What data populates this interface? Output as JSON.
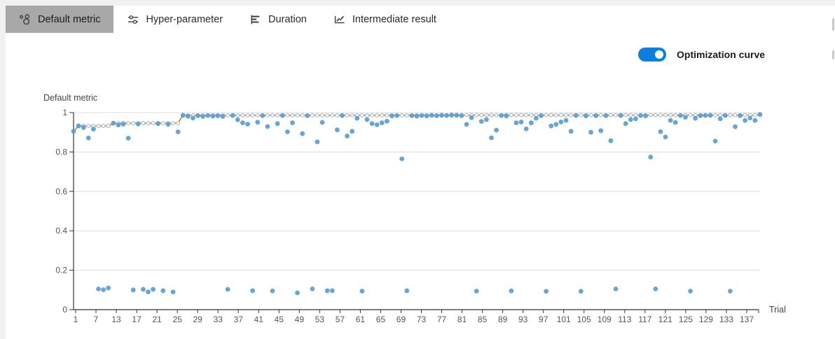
{
  "tabs": [
    {
      "label": "Default metric",
      "active": true,
      "icon": "scatter-bubbles-icon"
    },
    {
      "label": "Hyper-parameter",
      "active": false,
      "icon": "sliders-icon"
    },
    {
      "label": "Duration",
      "active": false,
      "icon": "horizontal-bars-icon"
    },
    {
      "label": "Intermediate result",
      "active": false,
      "icon": "line-chart-icon"
    }
  ],
  "toggle": {
    "label": "Optimization curve",
    "state": "on"
  },
  "colors": {
    "accent_blue": "#0b7fdb",
    "active_tab_bg": "#a8a8a8",
    "scatter_dot": "#569bd0",
    "curve_line": "#f2740b",
    "curve_marker_stroke": "#9fb9cb",
    "gridline": "#dddddd",
    "axis": "#333333",
    "tick_label": "#555555"
  },
  "chart_data": {
    "type": "scatter",
    "title": "Default metric",
    "xlabel": "Trial",
    "ylabel": "Default metric",
    "ylim": [
      0,
      1
    ],
    "grid": true,
    "legend": "none",
    "y_tick_labels": [
      "0",
      "0.2",
      "0.4",
      "0.6",
      "0.8",
      "1"
    ],
    "x_tick_labels": [
      "1",
      "7",
      "13",
      "17",
      "21",
      "25",
      "29",
      "33",
      "37",
      "41",
      "45",
      "49",
      "53",
      "57",
      "61",
      "65",
      "69",
      "73",
      "77",
      "81",
      "85",
      "89",
      "93",
      "97",
      "101",
      "105",
      "109",
      "113",
      "117",
      "121",
      "125",
      "129",
      "133",
      "137"
    ],
    "series": [
      {
        "name": "Default metric",
        "type": "scatter",
        "color": "#569bd0",
        "values": [
          0.905,
          0.932,
          0.924,
          0.871,
          0.916,
          0.105,
          0.101,
          0.11,
          0.946,
          0.937,
          0.941,
          0.87,
          0.1,
          0.942,
          0.103,
          0.09,
          0.103,
          0.944,
          0.096,
          0.94,
          0.09,
          0.902,
          0.986,
          0.981,
          0.972,
          0.984,
          0.98,
          0.985,
          0.982,
          0.984,
          0.98,
          0.103,
          0.985,
          0.963,
          0.948,
          0.941,
          0.096,
          0.951,
          0.984,
          0.929,
          0.095,
          0.944,
          0.985,
          0.902,
          0.948,
          0.085,
          0.893,
          0.984,
          0.105,
          0.851,
          0.95,
          0.096,
          0.096,
          0.912,
          0.985,
          0.881,
          0.905,
          0.971,
          0.094,
          0.964,
          0.944,
          0.938,
          0.948,
          0.956,
          0.983,
          0.985,
          0.765,
          0.096,
          0.984,
          0.982,
          0.985,
          0.983,
          0.986,
          0.984,
          0.986,
          0.985,
          0.987,
          0.986,
          0.984,
          0.94,
          0.974,
          0.094,
          0.955,
          0.964,
          0.872,
          0.911,
          0.985,
          0.983,
          0.095,
          0.948,
          0.952,
          0.917,
          0.948,
          0.971,
          0.984,
          0.093,
          0.932,
          0.94,
          0.952,
          0.96,
          0.905,
          0.985,
          0.093,
          0.983,
          0.9,
          0.984,
          0.908,
          0.984,
          0.857,
          0.105,
          0.985,
          0.944,
          0.964,
          0.968,
          0.985,
          0.983,
          0.774,
          0.105,
          0.903,
          0.876,
          0.96,
          0.95,
          0.985,
          0.976,
          0.094,
          0.971,
          0.984,
          0.985,
          0.986,
          0.855,
          0.968,
          0.985,
          0.094,
          0.928,
          0.984,
          0.96,
          0.972,
          0.96,
          0.99
        ]
      },
      {
        "name": "Optimization curve",
        "type": "line",
        "color": "#f2740b",
        "derivation": "running-max of Default metric values"
      }
    ]
  }
}
